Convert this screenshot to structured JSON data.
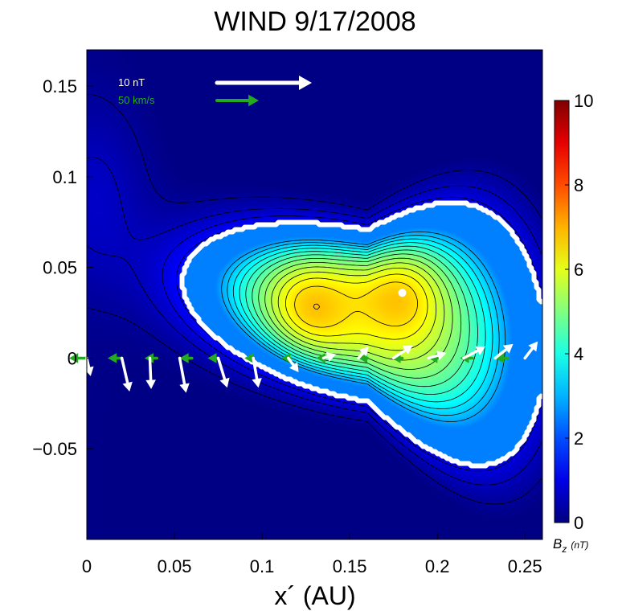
{
  "chart_data": {
    "type": "heatmap",
    "title": "WIND 9/17/2008",
    "xlabel": "x´ (AU)",
    "ylabel": "",
    "xlim": [
      0,
      0.26
    ],
    "ylim": [
      -0.1,
      0.17
    ],
    "xticks": [
      {
        "value": 0,
        "label": "0"
      },
      {
        "value": 0.05,
        "label": "0.05"
      },
      {
        "value": 0.1,
        "label": "0.1"
      },
      {
        "value": 0.15,
        "label": "0.15"
      },
      {
        "value": 0.2,
        "label": "0.2"
      },
      {
        "value": 0.25,
        "label": "0.25"
      }
    ],
    "yticks": [
      {
        "value": -0.05,
        "label": "−0.05"
      },
      {
        "value": 0,
        "label": "0"
      },
      {
        "value": 0.05,
        "label": "0.05"
      },
      {
        "value": 0.1,
        "label": "0.1"
      },
      {
        "value": 0.15,
        "label": "0.15"
      }
    ],
    "colorbar": {
      "label": "B_z (nT)",
      "label_main": "B",
      "label_sub": "z",
      "label_unit": "(nT)",
      "range": [
        0,
        10
      ],
      "ticks": [
        {
          "value": 0,
          "label": "0"
        },
        {
          "value": 2,
          "label": "2"
        },
        {
          "value": 4,
          "label": "4"
        },
        {
          "value": 6,
          "label": "6"
        },
        {
          "value": 8,
          "label": "8"
        },
        {
          "value": 10,
          "label": "10"
        }
      ],
      "colormap": "jet"
    },
    "field_maxima": [
      {
        "x": 0.126,
        "y": 0.028,
        "value": 7.0
      },
      {
        "x": 0.18,
        "y": 0.037,
        "value": 7.0
      }
    ],
    "boundary_level": 2.5,
    "marker": {
      "x": 0.18,
      "y": 0.036,
      "color": "#ffffff"
    },
    "legend": [
      {
        "label": "10 nT",
        "color": "#ffffff",
        "kind": "magnetic field vector"
      },
      {
        "label": "50 km/s",
        "color": "#22aa22",
        "kind": "velocity vector"
      }
    ],
    "b_vectors": [
      {
        "x": 0.0,
        "y": 0.0,
        "bx": 0.3,
        "by": -1.4
      },
      {
        "x": 0.02,
        "y": 0.0,
        "bx": 0.6,
        "by": -2.6
      },
      {
        "x": 0.036,
        "y": 0.0,
        "bx": 0.1,
        "by": -2.4
      },
      {
        "x": 0.053,
        "y": 0.0,
        "bx": 0.5,
        "by": -2.7
      },
      {
        "x": 0.075,
        "y": 0.0,
        "bx": 0.7,
        "by": -2.3
      },
      {
        "x": 0.095,
        "y": 0.0,
        "bx": 0.4,
        "by": -2.3
      },
      {
        "x": 0.115,
        "y": 0.0,
        "bx": 0.8,
        "by": -1.1
      },
      {
        "x": 0.135,
        "y": 0.0,
        "bx": 1.0,
        "by": 0.3
      },
      {
        "x": 0.155,
        "y": 0.0,
        "bx": 0.8,
        "by": 0.9
      },
      {
        "x": 0.175,
        "y": 0.0,
        "bx": 1.5,
        "by": 1.0
      },
      {
        "x": 0.195,
        "y": 0.0,
        "bx": 1.4,
        "by": 0.4
      },
      {
        "x": 0.215,
        "y": 0.0,
        "bx": 1.7,
        "by": 0.9
      },
      {
        "x": 0.233,
        "y": 0.0,
        "bx": 1.4,
        "by": 1.1
      },
      {
        "x": 0.25,
        "y": 0.0,
        "bx": 1.0,
        "by": 1.3
      }
    ],
    "v_vectors": [
      {
        "x": 0.0,
        "y": 0.0,
        "vx": 1.0,
        "vy": 0.0
      },
      {
        "x": 0.02,
        "y": 0.0,
        "vx": 0.8,
        "vy": 0.0
      },
      {
        "x": 0.04,
        "y": 0.0,
        "vx": 0.7,
        "vy": 0.0
      },
      {
        "x": 0.06,
        "y": 0.0,
        "vx": 0.7,
        "vy": 0.0
      },
      {
        "x": 0.075,
        "y": 0.0,
        "vx": 0.6,
        "vy": 0.0
      },
      {
        "x": 0.095,
        "y": 0.0,
        "vx": 0.5,
        "vy": 0.0
      },
      {
        "x": 0.115,
        "y": 0.0,
        "vx": 0.4,
        "vy": 0.0
      },
      {
        "x": 0.135,
        "y": 0.0,
        "vx": 0.4,
        "vy": 0.0
      },
      {
        "x": 0.16,
        "y": 0.0,
        "vx": 0.5,
        "vy": 0.0
      },
      {
        "x": 0.18,
        "y": 0.0,
        "vx": 0.6,
        "vy": 0.0
      },
      {
        "x": 0.2,
        "y": 0.0,
        "vx": 0.5,
        "vy": 0.0
      },
      {
        "x": 0.22,
        "y": 0.0,
        "vx": 0.7,
        "vy": 0.0
      },
      {
        "x": 0.24,
        "y": 0.0,
        "vx": 0.7,
        "vy": 0.0
      }
    ]
  }
}
